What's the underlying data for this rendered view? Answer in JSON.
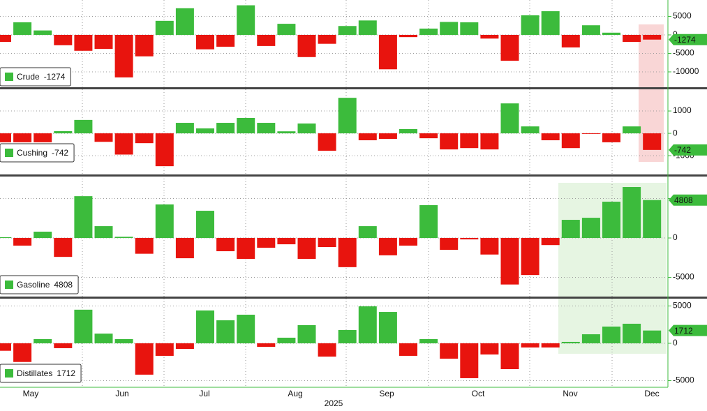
{
  "chart_data": [
    {
      "type": "bar",
      "series": [
        {
          "name": "Crude",
          "values": [
            -1900,
            3400,
            1200,
            -2800,
            -4300,
            -3800,
            -11500,
            -5800,
            3800,
            7200,
            -3900,
            -3200,
            8000,
            -3000,
            3000,
            -6000,
            -2400,
            2400,
            3900,
            -9300,
            -600,
            1700,
            3500,
            3400,
            -1000,
            -7000,
            5300,
            6400,
            -3400,
            2600,
            600,
            -1900,
            -1274
          ]
        }
      ],
      "ylim": [
        -14150,
        9430
      ],
      "yticks": [
        5000,
        0,
        -5000,
        -10000
      ],
      "positive_color": "#3cbb3c",
      "negative_color": "#e8140e",
      "grid": true
    },
    {
      "type": "bar",
      "series": [
        {
          "name": "Cushing",
          "values": [
            -400,
            -400,
            -400,
            100,
            600,
            -380,
            -950,
            -440,
            -1470,
            470,
            220,
            470,
            690,
            470,
            90,
            440,
            -780,
            1590,
            -310,
            -250,
            190,
            -220,
            -720,
            -660,
            -720,
            1340,
            310,
            -310,
            -660,
            -30,
            -400,
            310,
            -742
          ]
        }
      ],
      "ylim": [
        -1840,
        1970
      ],
      "yticks": [
        1000,
        0,
        -1000
      ],
      "positive_color": "#3cbb3c",
      "negative_color": "#e8140e",
      "grid": true
    },
    {
      "type": "bar",
      "series": [
        {
          "name": "Gasoline",
          "values": [
            100,
            -970,
            800,
            -2400,
            5300,
            1500,
            150,
            -2000,
            4250,
            -2570,
            3450,
            -1680,
            -2650,
            -1240,
            -800,
            -2650,
            -1150,
            -3700,
            1500,
            -2200,
            -970,
            4160,
            -1500,
            -180,
            -2100,
            -5900,
            -4700,
            -900,
            2300,
            2560,
            4600,
            6460,
            4808
          ]
        }
      ],
      "ylim": [
        -7430,
        7790
      ],
      "yticks": [
        5000,
        0,
        -5000
      ],
      "positive_color": "#3cbb3c",
      "negative_color": "#e8140e",
      "grid": true
    },
    {
      "type": "bar",
      "series": [
        {
          "name": "Distillates",
          "values": [
            -1000,
            -2500,
            560,
            -650,
            4500,
            1300,
            560,
            -4200,
            -1680,
            -750,
            4400,
            3080,
            3830,
            -470,
            750,
            2430,
            -1780,
            1780,
            4950,
            4200,
            -1680,
            560,
            -2060,
            -4670,
            -1500,
            -3460,
            -560,
            -560,
            190,
            1210,
            2240,
            2620,
            1712
          ]
        }
      ],
      "ylim": [
        -5890,
        5980
      ],
      "yticks": [
        5000,
        0,
        -5000
      ],
      "positive_color": "#3cbb3c",
      "negative_color": "#e8140e",
      "grid": true
    }
  ],
  "x_axis": {
    "categories": [
      "May",
      "Jun",
      "Jul",
      "Aug",
      "Sep",
      "Oct",
      "Nov",
      "Dec"
    ],
    "label": "2025"
  }
}
